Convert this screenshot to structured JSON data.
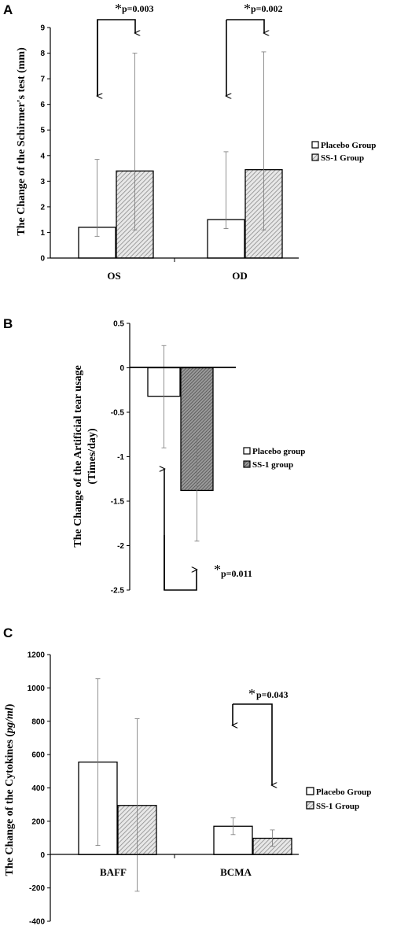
{
  "chart_data": [
    {
      "panel": "A",
      "type": "bar",
      "categories": [
        "OS",
        "OD"
      ],
      "series": [
        {
          "name": "Placebo Group",
          "values": [
            1.2,
            1.5
          ],
          "err_low": [
            0.85,
            1.15
          ],
          "err_high": [
            3.85,
            4.15
          ]
        },
        {
          "name": "SS-1 Group",
          "values": [
            3.4,
            3.45
          ],
          "err_low": [
            1.1,
            1.1
          ],
          "err_high": [
            8.0,
            8.05
          ]
        }
      ],
      "ylabel": "The Change of the Schirmer's test (mm)",
      "ylim": [
        0,
        9
      ],
      "yticks": [
        "0",
        "1",
        "2",
        "3",
        "4",
        "5",
        "6",
        "7",
        "8",
        "9"
      ],
      "legend_position": "right",
      "annotations": [
        {
          "star": "*",
          "text": "p=0.003",
          "category": "OS"
        },
        {
          "star": "*",
          "text": "p=0.002",
          "category": "OD"
        }
      ]
    },
    {
      "panel": "B",
      "type": "bar",
      "categories": [
        ""
      ],
      "series": [
        {
          "name": "Placebo group",
          "values": [
            -0.32
          ],
          "err_low": [
            -0.9
          ],
          "err_high": [
            0.25
          ]
        },
        {
          "name": "SS-1 group",
          "values": [
            -1.38
          ],
          "err_low": [
            -1.95
          ],
          "err_high": [
            -0.8
          ]
        }
      ],
      "ylabel": "The Change of the Artificial tear usage",
      "ylabel2": "(Times/day)",
      "ylim": [
        -2.5,
        0.5
      ],
      "yticks": [
        "0.5",
        "0",
        "-0.5",
        "-1",
        "-1.5",
        "-2",
        "-2.5"
      ],
      "legend_position": "right",
      "annotations": [
        {
          "star": "*",
          "text": "p=0.011"
        }
      ]
    },
    {
      "panel": "C",
      "type": "bar",
      "categories": [
        "BAFF",
        "BCMA"
      ],
      "series": [
        {
          "name": "Placebo Group",
          "values": [
            555,
            170
          ],
          "err_low": [
            55,
            120
          ],
          "err_high": [
            1055,
            220
          ]
        },
        {
          "name": "SS-1 Group",
          "values": [
            295,
            98
          ],
          "err_low": [
            -220,
            50
          ],
          "err_high": [
            815,
            148
          ]
        }
      ],
      "ylabel_a": "The Change of the Cytokines (",
      "ylabel_b": "pg/ml",
      "ylabel_c": ")",
      "ylim": [
        -400,
        1200
      ],
      "yticks": [
        "1200",
        "1000",
        "800",
        "600",
        "400",
        "200",
        "0",
        "-200",
        "-400"
      ],
      "legend_position": "right",
      "annotations": [
        {
          "star": "*",
          "text": "p=0.043",
          "category": "BCMA"
        }
      ]
    }
  ]
}
